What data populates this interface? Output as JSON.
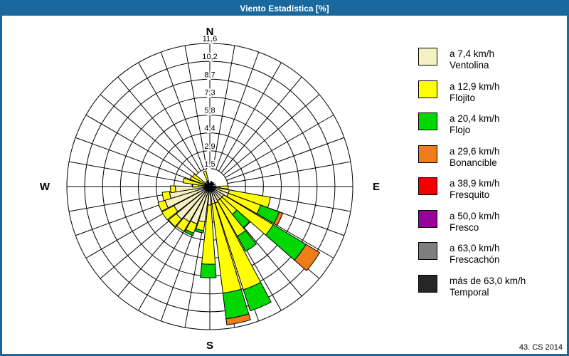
{
  "window": {
    "title": "Viento Estadística [%]",
    "footer": "43. CS 2014",
    "titlebar_color": "#19699E"
  },
  "compass": {
    "north": "N",
    "east": "E",
    "south": "S",
    "west": "W"
  },
  "chart_data": {
    "type": "wind-rose-polar",
    "title": "Viento Estadística [%]",
    "units": "percent",
    "sector_width_deg": 10,
    "grid": {
      "spoke_step_deg": 10,
      "rings": 8,
      "inner_hole_value": 1.45
    },
    "radial_axis": {
      "max": 11.6,
      "ring_values": [
        1.45,
        2.9,
        4.35,
        5.8,
        7.25,
        8.7,
        10.15,
        11.6
      ],
      "ring_labels": [
        "1,5",
        "2,9",
        "4,4",
        "5,8",
        "7,3",
        "8,7",
        "10,2",
        "11,6"
      ]
    },
    "categories": [
      {
        "speed": "a 7,4 km/h",
        "name": "Ventolina",
        "color": "#F5F1C3"
      },
      {
        "speed": "a 12,9 km/h",
        "name": "Flojito",
        "color": "#FFFF00"
      },
      {
        "speed": "a 20,4 km/h",
        "name": "Flojo",
        "color": "#00D800"
      },
      {
        "speed": "a 29,6 km/h",
        "name": "Bonancible",
        "color": "#EE7D1A"
      },
      {
        "speed": "a 38,9 km/h",
        "name": "Fresquito",
        "color": "#F40000"
      },
      {
        "speed": "a 50,0 km/h",
        "name": "Fresco",
        "color": "#990099"
      },
      {
        "speed": "a 63,0 km/h",
        "name": "Frescachón",
        "color": "#7F7F7F"
      },
      {
        "speed": "más de 63,0 km/h",
        "name": "Temporal",
        "color": "#262626"
      }
    ],
    "petals_note": "cum = cumulative outer radius in % for categories [Ventolina, Flojito, Flojo, Bonancible]; dir = compass bearing of sector centre",
    "petals": [
      {
        "dir": 93,
        "cum": [
          0.8,
          1.5,
          0,
          0
        ]
      },
      {
        "dir": 105,
        "cum": [
          1.6,
          5.0,
          0,
          0
        ]
      },
      {
        "dir": 115,
        "cum": [
          1.6,
          4.4,
          6.0,
          6.3
        ]
      },
      {
        "dir": 126,
        "cum": [
          1.3,
          6.0,
          9.1,
          10.4
        ]
      },
      {
        "dir": 136,
        "cum": [
          1.3,
          2.9,
          4.3,
          0
        ]
      },
      {
        "dir": 146,
        "cum": [
          1.3,
          4.6,
          6.0,
          0
        ]
      },
      {
        "dir": 157,
        "cum": [
          1.4,
          8.8,
          10.6,
          0
        ]
      },
      {
        "dir": 168,
        "cum": [
          1.4,
          8.7,
          10.8,
          11.3
        ]
      },
      {
        "dir": 181,
        "cum": [
          1.5,
          6.3,
          7.4,
          0
        ]
      },
      {
        "dir": 193,
        "cum": [
          2.9,
          3.6,
          3.8,
          0
        ]
      },
      {
        "dir": 204,
        "cum": [
          3.2,
          4.0,
          4.2,
          0
        ]
      },
      {
        "dir": 215,
        "cum": [
          3.3,
          4.2,
          0,
          0
        ]
      },
      {
        "dir": 226,
        "cum": [
          3.5,
          4.3,
          0,
          0
        ]
      },
      {
        "dir": 237,
        "cum": [
          3.3,
          4.4,
          0,
          0
        ]
      },
      {
        "dir": 248,
        "cum": [
          3.8,
          4.4,
          0,
          0
        ]
      },
      {
        "dir": 258,
        "cum": [
          3.3,
          3.9,
          0,
          0
        ]
      },
      {
        "dir": 266,
        "cum": [
          2.8,
          3.2,
          0,
          0
        ]
      },
      {
        "dir": 273,
        "cum": [
          0.9,
          1.4,
          0,
          0
        ]
      },
      {
        "dir": 283,
        "cum": [
          0.4,
          2.2,
          0,
          0
        ]
      },
      {
        "dir": 295,
        "cum": [
          0.3,
          1.7,
          0,
          0
        ]
      },
      {
        "dir": 304,
        "cum": [
          0.3,
          1.6,
          0,
          0
        ]
      },
      {
        "dir": 341,
        "cum": [
          0.2,
          1.3,
          0,
          0
        ]
      }
    ],
    "legend_position": "right"
  }
}
